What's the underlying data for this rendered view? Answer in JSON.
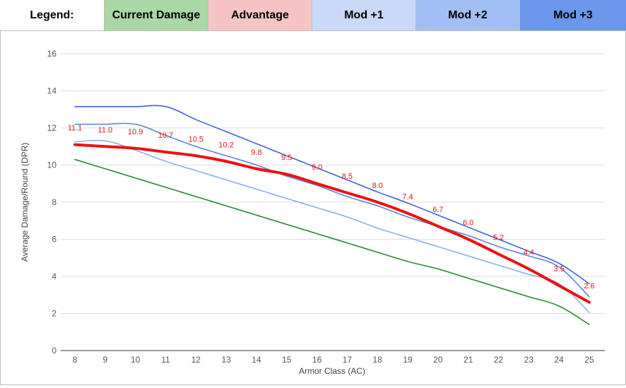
{
  "legend": {
    "items": [
      {
        "label": "Legend:",
        "color": "#ffffff"
      },
      {
        "label": "Current Damage",
        "color": "#a9d8a4"
      },
      {
        "label": "Advantage",
        "color": "#f6c4c4"
      },
      {
        "label": "Mod +1",
        "color": "#c9d9f8"
      },
      {
        "label": "Mod +2",
        "color": "#a2bff3"
      },
      {
        "label": "Mod +3",
        "color": "#6b96ea"
      }
    ]
  },
  "chart_data": {
    "type": "line",
    "title": "",
    "xlabel": "Armor Class (AC)",
    "ylabel": "Average Damage/Round (DPR)",
    "x": [
      8,
      9,
      10,
      11,
      12,
      13,
      14,
      15,
      16,
      17,
      18,
      19,
      20,
      21,
      22,
      23,
      24,
      25
    ],
    "xlim": [
      8,
      25
    ],
    "ylim": [
      0,
      16
    ],
    "yticks": [
      0,
      2,
      4,
      6,
      8,
      10,
      12,
      14,
      16
    ],
    "grid": true,
    "series": [
      {
        "key": "current",
        "color": "#2b8a2f",
        "width": 1.6,
        "values": [
          10.3,
          9.8,
          9.3,
          8.8,
          8.3,
          7.8,
          7.3,
          6.8,
          6.3,
          5.8,
          5.3,
          4.8,
          4.4,
          3.9,
          3.4,
          2.9,
          2.4,
          1.4
        ]
      },
      {
        "key": "mod1",
        "color": "#8ab0ee",
        "width": 1.6,
        "values": [
          11.25,
          11.3,
          10.8,
          10.2,
          9.7,
          9.2,
          8.7,
          8.2,
          7.7,
          7.2,
          6.6,
          6.1,
          5.6,
          5.1,
          4.6,
          4.1,
          3.6,
          2.05
        ]
      },
      {
        "key": "mod2",
        "color": "#5a86e2",
        "width": 1.6,
        "values": [
          12.2,
          12.2,
          12.2,
          11.6,
          11.0,
          10.5,
          10.0,
          9.4,
          8.9,
          8.3,
          7.8,
          7.2,
          6.7,
          6.2,
          5.6,
          5.1,
          4.5,
          2.9
        ]
      },
      {
        "key": "mod3",
        "color": "#3a64d2",
        "width": 1.6,
        "values": [
          13.15,
          13.15,
          13.15,
          13.15,
          12.45,
          11.8,
          11.15,
          10.5,
          9.85,
          9.2,
          8.55,
          7.95,
          7.3,
          6.65,
          6.0,
          5.35,
          4.7,
          3.6
        ]
      },
      {
        "key": "advantage",
        "color": "#ee1111",
        "width": 4,
        "values": [
          11.1,
          11.0,
          10.9,
          10.7,
          10.5,
          10.2,
          9.8,
          9.5,
          9.0,
          8.5,
          8.0,
          7.4,
          6.7,
          6.0,
          5.2,
          4.4,
          3.5,
          2.6
        ],
        "labels": [
          "11.1",
          "11.0",
          "10.9",
          "10.7",
          "10.5",
          "10.2",
          "9.8",
          "9.5",
          "9.0",
          "8.5",
          "8.0",
          "7.4",
          "6.7",
          "6.0",
          "5.2",
          "4.4",
          "3.5",
          "2.6"
        ]
      }
    ]
  }
}
